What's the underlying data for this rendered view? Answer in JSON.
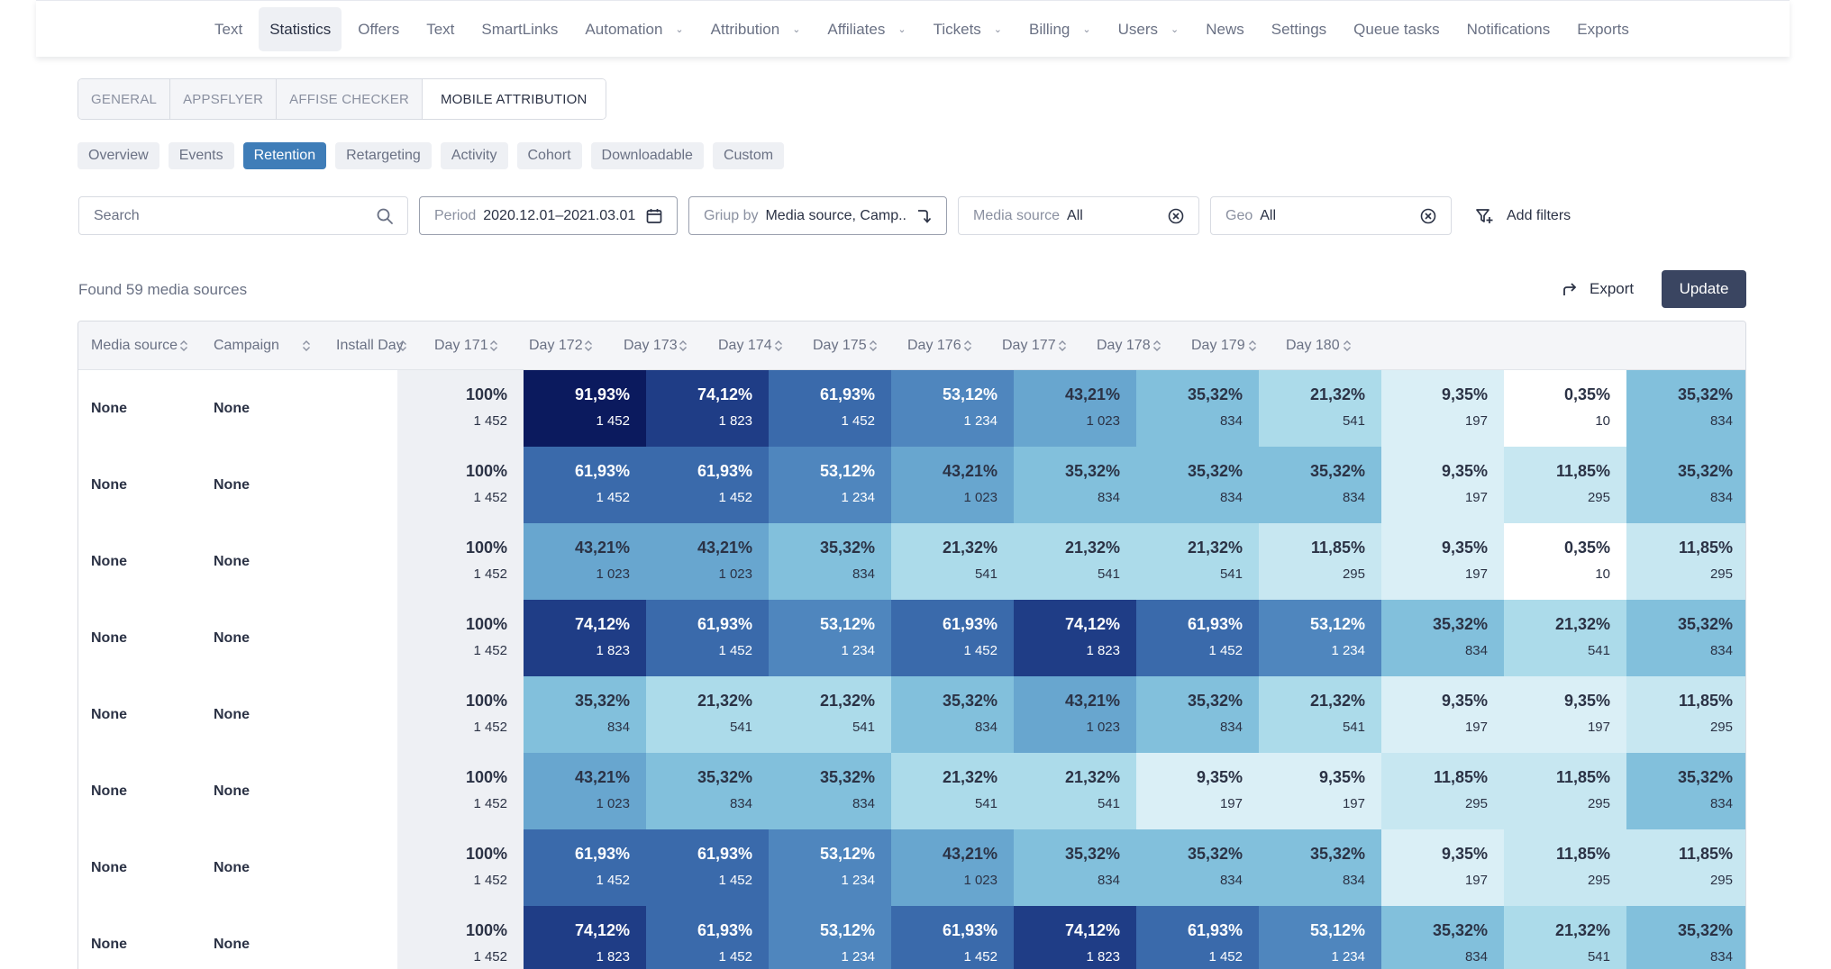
{
  "nav": {
    "items": [
      {
        "label": "Text",
        "dropdown": false,
        "active": false
      },
      {
        "label": "Statistics",
        "dropdown": false,
        "active": true
      },
      {
        "label": "Offers",
        "dropdown": false,
        "active": false
      },
      {
        "label": "Text",
        "dropdown": false,
        "active": false
      },
      {
        "label": "SmartLinks",
        "dropdown": false,
        "active": false
      },
      {
        "label": "Automation",
        "dropdown": true,
        "active": false
      },
      {
        "label": "Attribution",
        "dropdown": true,
        "active": false
      },
      {
        "label": "Affiliates",
        "dropdown": true,
        "active": false
      },
      {
        "label": "Tickets",
        "dropdown": true,
        "active": false
      },
      {
        "label": "Billing",
        "dropdown": true,
        "active": false
      },
      {
        "label": "Users",
        "dropdown": true,
        "active": false
      },
      {
        "label": "News",
        "dropdown": false,
        "active": false
      },
      {
        "label": "Settings",
        "dropdown": false,
        "active": false
      },
      {
        "label": "Queue tasks",
        "dropdown": false,
        "active": false
      },
      {
        "label": "Notifications",
        "dropdown": false,
        "active": false
      },
      {
        "label": "Exports",
        "dropdown": false,
        "active": false
      }
    ]
  },
  "section_tabs": [
    {
      "label": "GENERAL",
      "active": false
    },
    {
      "label": "APPSFLYER",
      "active": false
    },
    {
      "label": "AFFISE CHECKER",
      "active": false
    },
    {
      "label": "MOBILE ATTRIBUTION",
      "active": true
    }
  ],
  "sub_tabs": [
    {
      "label": "Overview",
      "active": false
    },
    {
      "label": "Events",
      "active": false
    },
    {
      "label": "Retention",
      "active": true
    },
    {
      "label": "Retargeting",
      "active": false
    },
    {
      "label": "Activity",
      "active": false
    },
    {
      "label": "Cohort",
      "active": false
    },
    {
      "label": "Downloadable",
      "active": false
    },
    {
      "label": "Custom",
      "active": false
    }
  ],
  "filters": {
    "search_placeholder": "Search",
    "period_label": "Period",
    "period_value": "2020.12.01–2021.03.01",
    "group_label": "Griup by",
    "group_value": "Media source, Camp..",
    "media_label": "Media source",
    "media_value": "All",
    "geo_label": "Geo",
    "geo_value": "All",
    "add_filters": "Add filters"
  },
  "results": {
    "found_text": "Found 59 media sources",
    "export_label": "Export",
    "update_label": "Update"
  },
  "table": {
    "headers": [
      "Media source",
      "Campaign",
      "Install Day",
      "Day 171",
      "Day 172",
      "Day 173",
      "Day 174",
      "Day 175",
      "Day 176",
      "Day 177",
      "Day 178",
      "Day 179",
      "Day 180"
    ],
    "rows": [
      {
        "media": "None",
        "campaign": "None",
        "install_pct": "100%",
        "install_count": "1 452",
        "cells": [
          [
            "91,93%",
            "1 452"
          ],
          [
            "74,12%",
            "1 823"
          ],
          [
            "61,93%",
            "1 452"
          ],
          [
            "53,12%",
            "1 234"
          ],
          [
            "43,21%",
            "1 023"
          ],
          [
            "35,32%",
            "834"
          ],
          [
            "21,32%",
            "541"
          ],
          [
            "9,35%",
            "197"
          ],
          [
            "0,35%",
            "10"
          ],
          [
            "35,32%",
            "834"
          ]
        ]
      },
      {
        "media": "None",
        "campaign": "None",
        "install_pct": "100%",
        "install_count": "1 452",
        "cells": [
          [
            "61,93%",
            "1 452"
          ],
          [
            "61,93%",
            "1 452"
          ],
          [
            "53,12%",
            "1 234"
          ],
          [
            "43,21%",
            "1 023"
          ],
          [
            "35,32%",
            "834"
          ],
          [
            "35,32%",
            "834"
          ],
          [
            "35,32%",
            "834"
          ],
          [
            "9,35%",
            "197"
          ],
          [
            "11,85%",
            "295"
          ],
          [
            "35,32%",
            "834"
          ]
        ]
      },
      {
        "media": "None",
        "campaign": "None",
        "install_pct": "100%",
        "install_count": "1 452",
        "cells": [
          [
            "43,21%",
            "1 023"
          ],
          [
            "43,21%",
            "1 023"
          ],
          [
            "35,32%",
            "834"
          ],
          [
            "21,32%",
            "541"
          ],
          [
            "21,32%",
            "541"
          ],
          [
            "21,32%",
            "541"
          ],
          [
            "11,85%",
            "295"
          ],
          [
            "9,35%",
            "197"
          ],
          [
            "0,35%",
            "10"
          ],
          [
            "11,85%",
            "295"
          ]
        ]
      },
      {
        "media": "None",
        "campaign": "None",
        "install_pct": "100%",
        "install_count": "1 452",
        "cells": [
          [
            "74,12%",
            "1 823"
          ],
          [
            "61,93%",
            "1 452"
          ],
          [
            "53,12%",
            "1 234"
          ],
          [
            "61,93%",
            "1 452"
          ],
          [
            "74,12%",
            "1 823"
          ],
          [
            "61,93%",
            "1 452"
          ],
          [
            "53,12%",
            "1 234"
          ],
          [
            "35,32%",
            "834"
          ],
          [
            "21,32%",
            "541"
          ],
          [
            "35,32%",
            "834"
          ]
        ]
      },
      {
        "media": "None",
        "campaign": "None",
        "install_pct": "100%",
        "install_count": "1 452",
        "cells": [
          [
            "35,32%",
            "834"
          ],
          [
            "21,32%",
            "541"
          ],
          [
            "21,32%",
            "541"
          ],
          [
            "35,32%",
            "834"
          ],
          [
            "43,21%",
            "1 023"
          ],
          [
            "35,32%",
            "834"
          ],
          [
            "21,32%",
            "541"
          ],
          [
            "9,35%",
            "197"
          ],
          [
            "9,35%",
            "197"
          ],
          [
            "11,85%",
            "295"
          ]
        ]
      },
      {
        "media": "None",
        "campaign": "None",
        "install_pct": "100%",
        "install_count": "1 452",
        "cells": [
          [
            "43,21%",
            "1 023"
          ],
          [
            "35,32%",
            "834"
          ],
          [
            "35,32%",
            "834"
          ],
          [
            "21,32%",
            "541"
          ],
          [
            "21,32%",
            "541"
          ],
          [
            "9,35%",
            "197"
          ],
          [
            "9,35%",
            "197"
          ],
          [
            "11,85%",
            "295"
          ],
          [
            "11,85%",
            "295"
          ],
          [
            "35,32%",
            "834"
          ]
        ]
      },
      {
        "media": "None",
        "campaign": "None",
        "install_pct": "100%",
        "install_count": "1 452",
        "cells": [
          [
            "61,93%",
            "1 452"
          ],
          [
            "61,93%",
            "1 452"
          ],
          [
            "53,12%",
            "1 234"
          ],
          [
            "43,21%",
            "1 023"
          ],
          [
            "35,32%",
            "834"
          ],
          [
            "35,32%",
            "834"
          ],
          [
            "35,32%",
            "834"
          ],
          [
            "9,35%",
            "197"
          ],
          [
            "11,85%",
            "295"
          ],
          [
            "11,85%",
            "295"
          ]
        ]
      },
      {
        "media": "None",
        "campaign": "None",
        "install_pct": "100%",
        "install_count": "1 452",
        "cells": [
          [
            "74,12%",
            "1 823"
          ],
          [
            "61,93%",
            "1 452"
          ],
          [
            "53,12%",
            "1 234"
          ],
          [
            "61,93%",
            "1 452"
          ],
          [
            "74,12%",
            "1 823"
          ],
          [
            "61,93%",
            "1 452"
          ],
          [
            "53,12%",
            "1 234"
          ],
          [
            "35,32%",
            "834"
          ],
          [
            "21,32%",
            "541"
          ],
          [
            "35,32%",
            "834"
          ]
        ]
      }
    ]
  },
  "colors": {
    "91,93%": "#0b1a5e",
    "74,12%": "#1f3d86",
    "61,93%": "#3a6aab",
    "53,12%": "#4f86be",
    "43,21%": "#68a6cf",
    "35,32%": "#82c0dc",
    "21,32%": "#acdbea",
    "11,85%": "#c7e7f1",
    "9,35%": "#daeff6",
    "0,35%": "#ffffff"
  }
}
